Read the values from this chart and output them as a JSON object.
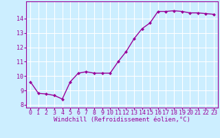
{
  "x": [
    0,
    1,
    2,
    3,
    4,
    5,
    6,
    7,
    8,
    9,
    10,
    11,
    12,
    13,
    14,
    15,
    16,
    17,
    18,
    19,
    20,
    21,
    22,
    23
  ],
  "y": [
    9.6,
    8.8,
    8.75,
    8.65,
    8.4,
    9.6,
    10.2,
    10.3,
    10.2,
    10.2,
    10.2,
    11.0,
    11.7,
    12.6,
    13.3,
    13.7,
    14.5,
    14.5,
    14.55,
    14.5,
    14.4,
    14.4,
    14.35,
    14.3
  ],
  "line_color": "#990099",
  "marker": "D",
  "marker_size": 2.5,
  "background_color": "#cceeff",
  "grid_color": "#ffffff",
  "xlabel": "Windchill (Refroidissement éolien,°C)",
  "xlim": [
    -0.5,
    23.5
  ],
  "ylim": [
    7.8,
    15.2
  ],
  "yticks": [
    8,
    9,
    10,
    11,
    12,
    13,
    14
  ],
  "xticks": [
    0,
    1,
    2,
    3,
    4,
    5,
    6,
    7,
    8,
    9,
    10,
    11,
    12,
    13,
    14,
    15,
    16,
    17,
    18,
    19,
    20,
    21,
    22,
    23
  ],
  "tick_color": "#990099",
  "label_color": "#990099",
  "label_fontsize": 6.5,
  "tick_fontsize": 6.0,
  "linewidth": 1.0
}
